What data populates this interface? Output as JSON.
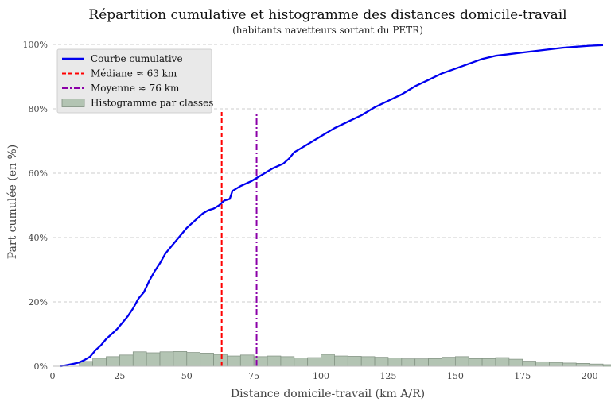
{
  "chart_data": {
    "type": "line",
    "title": "Répartition cumulative et histogramme des distances domicile-travail",
    "subtitle": "(habitants navetteurs sortant du PETR)",
    "xlabel": "Distance domicile-travail (km A/R)",
    "ylabel": "Part cumulée (en %)",
    "xlim": [
      0,
      205
    ],
    "ylim": [
      0,
      100
    ],
    "x_ticks": [
      0,
      25,
      50,
      75,
      100,
      125,
      150,
      175,
      200
    ],
    "y_ticks": [
      0,
      20,
      40,
      60,
      80,
      100
    ],
    "y_tick_labels": [
      "0%",
      "20%",
      "40%",
      "60%",
      "80%",
      "100%"
    ],
    "grid": "horizontal dashed",
    "legend_position": "top-left",
    "legend": [
      {
        "label": "Courbe cumulative",
        "style": "line",
        "color": "#0000ee"
      },
      {
        "label": "Médiane ≈ 63 km",
        "style": "dashed",
        "color": "#ff0000"
      },
      {
        "label": "Moyenne ≈ 76 km",
        "style": "dashdot",
        "color": "#8b00a8"
      },
      {
        "label": "Histogramme par classes",
        "style": "patch",
        "color": "#b3c4b3"
      }
    ],
    "series": [
      {
        "name": "Courbe cumulative",
        "type": "line",
        "color": "#0000ee",
        "x": [
          3,
          5,
          8,
          10,
          12,
          14,
          16,
          18,
          20,
          22,
          24,
          26,
          28,
          30,
          32,
          34,
          36,
          38,
          40,
          42,
          44,
          46,
          48,
          50,
          52,
          54,
          56,
          58,
          60,
          62,
          64,
          66,
          67,
          70,
          74,
          78,
          82,
          86,
          88,
          90,
          95,
          100,
          105,
          110,
          115,
          120,
          125,
          130,
          135,
          140,
          145,
          150,
          155,
          160,
          165,
          170,
          175,
          180,
          185,
          190,
          195,
          200,
          205
        ],
        "y": [
          0,
          0.3,
          0.8,
          1.2,
          2,
          3,
          5,
          6.5,
          8.5,
          10,
          11.5,
          13.5,
          15.5,
          18,
          21,
          23,
          26.5,
          29.5,
          32,
          35,
          37,
          39,
          41,
          43,
          44.5,
          46,
          47.5,
          48.5,
          49,
          50,
          51.5,
          52,
          54.5,
          56,
          57.5,
          59.5,
          61.5,
          63,
          64.5,
          66.5,
          69,
          71.5,
          74,
          76,
          78,
          80.5,
          82.5,
          84.5,
          87,
          89,
          91,
          92.5,
          94,
          95.5,
          96.5,
          97,
          97.5,
          98,
          98.5,
          99,
          99.3,
          99.6,
          99.8
        ]
      },
      {
        "name": "Histogramme par classes",
        "type": "bar",
        "color": "#b3c4b3",
        "bin_start": 10,
        "bin_width": 5,
        "values": [
          1.5,
          2.5,
          3,
          3.5,
          4.5,
          4.2,
          4.5,
          4.6,
          4.3,
          4.1,
          3.7,
          3.2,
          3.5,
          3,
          3.2,
          3,
          2.6,
          2.7,
          3.7,
          3.2,
          3.1,
          3,
          2.8,
          2.6,
          2.3,
          2.3,
          2.4,
          2.8,
          3,
          2.4,
          2.4,
          2.7,
          2.2,
          1.6,
          1.4,
          1.2,
          1,
          0.9,
          0.7,
          0.5
        ]
      }
    ],
    "reference_lines": [
      {
        "name": "Médiane ≈ 63 km",
        "x": 63,
        "y_top": 79,
        "color": "#ff0000",
        "style": "dashed"
      },
      {
        "name": "Moyenne ≈ 76 km",
        "x": 76,
        "y_top": 78.5,
        "color": "#8b00a8",
        "style": "dashdot"
      }
    ]
  }
}
